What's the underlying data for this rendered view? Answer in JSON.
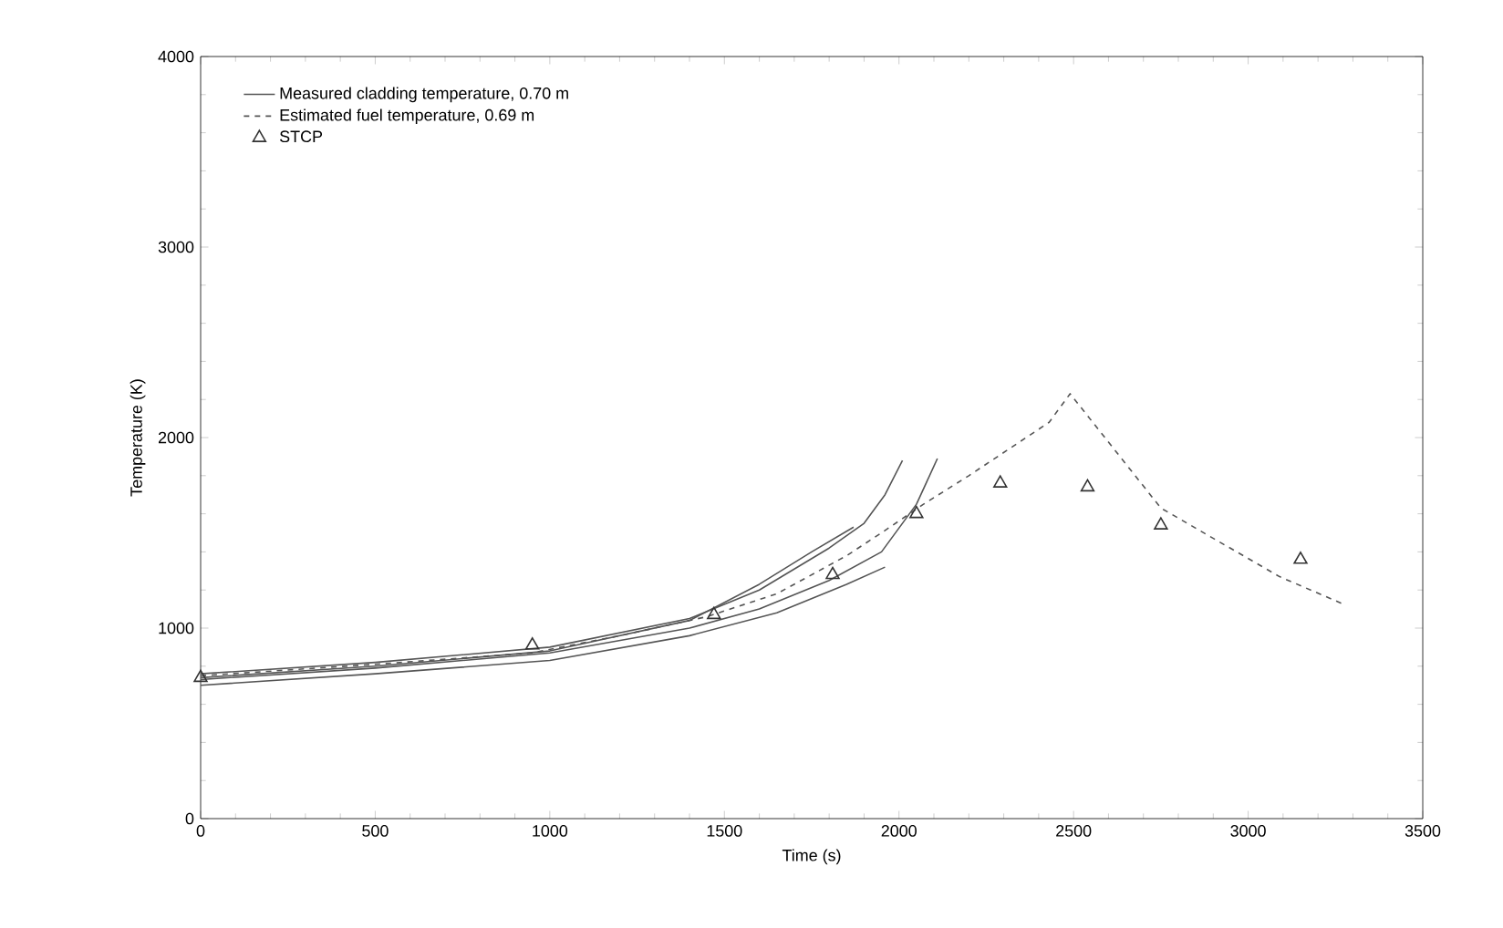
{
  "chart_data": {
    "type": "line",
    "xlabel": "Time (s)",
    "ylabel": "Temperature (K)",
    "xlim": [
      0,
      3500
    ],
    "ylim": [
      0,
      4000
    ],
    "xticks": [
      0,
      500,
      1000,
      1500,
      2000,
      2500,
      3000,
      3500
    ],
    "yticks": [
      0,
      1000,
      2000,
      3000,
      4000
    ],
    "grid": false,
    "legend": "top left",
    "series": [
      {
        "name": "Measured cladding temperature, 0.70 m",
        "color": "#555555",
        "line_style": "solid",
        "x": [
          0,
          500,
          1000,
          1400,
          1600,
          1800,
          1900,
          1960,
          2010
        ],
        "values": [
          760,
          820,
          900,
          1050,
          1200,
          1420,
          1550,
          1700,
          1880
        ]
      },
      {
        "color": "#555555",
        "line_style": "solid",
        "x": [
          0,
          500,
          1000,
          1400,
          1600,
          1800,
          1950,
          2050,
          2110
        ],
        "values": [
          730,
          790,
          870,
          1000,
          1100,
          1250,
          1400,
          1650,
          1890
        ]
      },
      {
        "color": "#555555",
        "line_style": "solid",
        "x": [
          0,
          500,
          1000,
          1400,
          1650,
          1850,
          1960
        ],
        "values": [
          700,
          760,
          830,
          960,
          1080,
          1230,
          1320
        ]
      },
      {
        "color": "#555555",
        "line_style": "solid",
        "x": [
          0,
          500,
          1000,
          1400,
          1600,
          1750,
          1870
        ],
        "values": [
          740,
          800,
          880,
          1040,
          1230,
          1400,
          1530
        ]
      },
      {
        "name": "Estimated fuel temperature, 0.69 m",
        "color": "#555555",
        "line_style": "dashed",
        "x": [
          0,
          500,
          950,
          1200,
          1450,
          1650,
          1850,
          1950,
          2070,
          2200,
          2430,
          2490,
          2750,
          3090,
          3280
        ],
        "values": [
          750,
          810,
          870,
          960,
          1060,
          1180,
          1380,
          1500,
          1650,
          1800,
          2080,
          2230,
          1630,
          1270,
          1120
        ]
      },
      {
        "name": "STCP",
        "type": "scatter",
        "marker": "triangle",
        "color": "#333333",
        "x": [
          0,
          950,
          1470,
          1810,
          2050,
          2290,
          2540,
          2750,
          3150
        ],
        "values": [
          740,
          910,
          1070,
          1280,
          1600,
          1760,
          1740,
          1540,
          1360
        ]
      }
    ]
  }
}
